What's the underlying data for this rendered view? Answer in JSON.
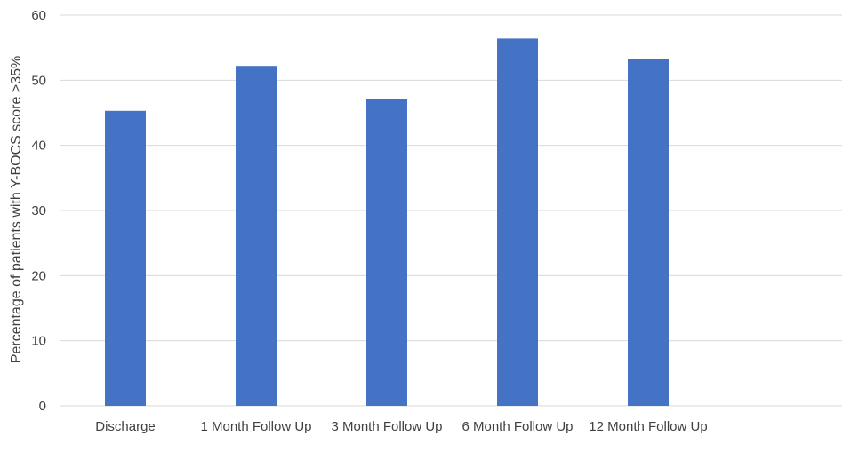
{
  "chart_data": {
    "type": "bar",
    "title": "",
    "xlabel": "",
    "ylabel": "Percentage of patients with Y-BOCS score >35%",
    "categories": [
      "Discharge",
      "1 Month Follow Up",
      "3 Month Follow Up",
      "6 Month Follow Up",
      "12 Month Follow Up"
    ],
    "values": [
      45.3,
      52.2,
      47.1,
      56.4,
      53.2
    ],
    "ylim": [
      0,
      60
    ],
    "yticks": [
      "0",
      "10",
      "20",
      "30",
      "40",
      "50",
      "60"
    ],
    "grid": true,
    "legend": "none",
    "bar_color": "#4472C4",
    "grid_color": "#d9d9d9"
  }
}
